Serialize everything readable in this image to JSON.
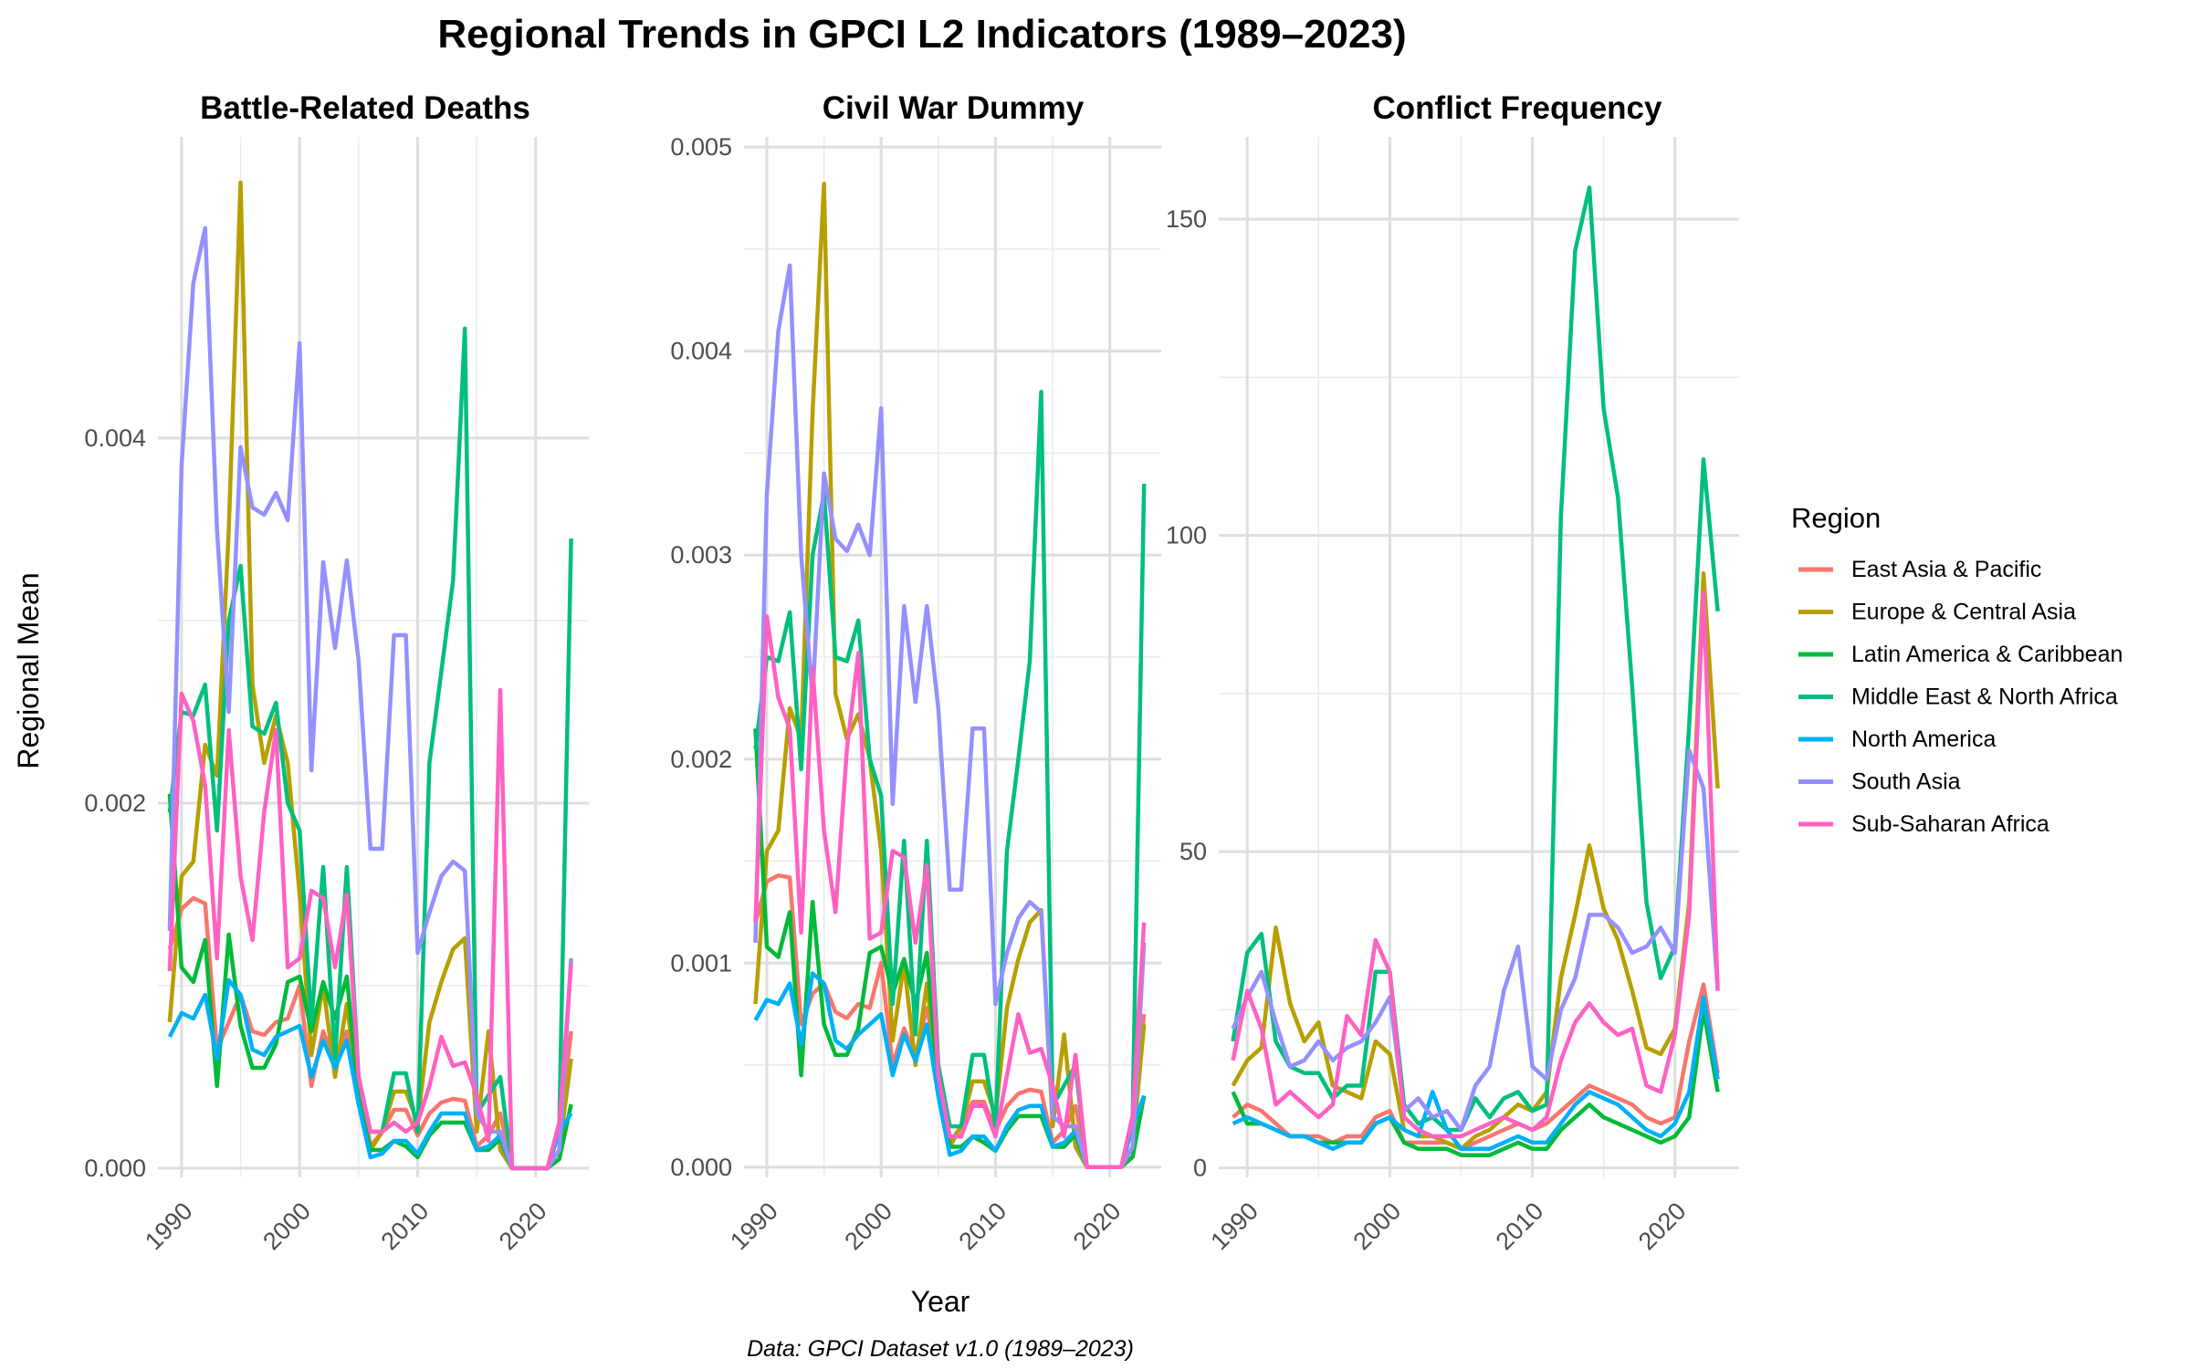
{
  "figure": {
    "title": "Regional Trends in GPCI L2 Indicators (1989–2023)",
    "caption": "Data: GPCI Dataset v1.0 (1989–2023)",
    "xlabel": "Year",
    "ylabel": "Regional Mean"
  },
  "legend": {
    "title": "Region",
    "placement": "right"
  },
  "chart_data": [
    {
      "type": "line",
      "title": "Battle-Related Deaths",
      "xlim": [
        1988,
        2024.5
      ],
      "ylim": [
        -5e-05,
        0.00565
      ],
      "xticks": [
        1990,
        2000,
        2010,
        2020
      ],
      "yticks": [
        0,
        0.002,
        0.004
      ],
      "ytick_labels": [
        "0.000",
        "0.002",
        "0.004"
      ],
      "x": [
        1989,
        1990,
        1991,
        1992,
        1993,
        1994,
        1995,
        1996,
        1997,
        1998,
        1999,
        2000,
        2001,
        2002,
        2003,
        2004,
        2005,
        2006,
        2007,
        2008,
        2009,
        2010,
        2011,
        2012,
        2013,
        2014,
        2015,
        2016,
        2017,
        2018,
        2019,
        2020,
        2021,
        2022,
        2023
      ],
      "series": [
        {
          "name": "East Asia & Pacific",
          "color": "#F8766D",
          "values": [
            0.0012,
            0.00142,
            0.00148,
            0.00145,
            0.00065,
            0.0008,
            0.00095,
            0.00075,
            0.00073,
            0.0008,
            0.00082,
            0.001,
            0.00045,
            0.00075,
            0.00058,
            0.00075,
            0.0005,
            0.00012,
            0.0002,
            0.00032,
            0.00032,
            0.00018,
            0.0003,
            0.00036,
            0.00038,
            0.00037,
            0.00012,
            0.00018,
            0.0003,
            0,
            0,
            0,
            0,
            0.0002,
            0.00075
          ]
        },
        {
          "name": "Europe & Central Asia",
          "color": "#B79F00",
          "values": [
            0.0008,
            0.0016,
            0.00168,
            0.00232,
            0.00215,
            0.0035,
            0.0054,
            0.00265,
            0.00222,
            0.00248,
            0.00222,
            0.0015,
            0.00062,
            0.001,
            0.0005,
            0.0009,
            0.0004,
            0.0001,
            0.0002,
            0.00042,
            0.00042,
            0.00025,
            0.0008,
            0.00102,
            0.0012,
            0.00126,
            0.0002,
            0.00075,
            0.0001,
            0,
            0,
            0,
            0,
            0.0001,
            0.0006
          ]
        },
        {
          "name": "Latin America & Caribbean",
          "color": "#00BA38",
          "values": [
            0.00205,
            0.0011,
            0.00102,
            0.00125,
            0.00045,
            0.00128,
            0.00078,
            0.00055,
            0.00055,
            0.00068,
            0.00102,
            0.00105,
            0.00075,
            0.00102,
            0.00082,
            0.00105,
            0.00038,
            0.0001,
            0.0001,
            0.00015,
            0.00012,
            6e-05,
            0.00018,
            0.00025,
            0.00025,
            0.00025,
            0.0001,
            0.0001,
            0.00016,
            0,
            0,
            0,
            0,
            5e-05,
            0.00035
          ]
        },
        {
          "name": "Middle East & North Africa",
          "color": "#00BF7D",
          "values": [
            0.00195,
            0.0025,
            0.00248,
            0.00265,
            0.00185,
            0.003,
            0.0033,
            0.00242,
            0.00238,
            0.00255,
            0.002,
            0.00185,
            0.0008,
            0.00165,
            0.0006,
            0.00165,
            0.0005,
            0.0002,
            0.0002,
            0.00052,
            0.00052,
            0.0002,
            0.00222,
            0.00272,
            0.00322,
            0.0046,
            0.0003,
            0.0004,
            0.0005,
            0,
            0,
            0,
            0,
            0.00025,
            0.00345
          ]
        },
        {
          "name": "North America",
          "color": "#00B0F6",
          "values": [
            0.00072,
            0.00085,
            0.00082,
            0.00095,
            0.0006,
            0.00103,
            0.00095,
            0.00065,
            0.00062,
            0.00072,
            0.00075,
            0.00078,
            0.0005,
            0.0007,
            0.00055,
            0.0007,
            0.00035,
            6e-05,
            8e-05,
            0.00015,
            0.00015,
            8e-05,
            0.0002,
            0.0003,
            0.0003,
            0.0003,
            0.0001,
            0.00012,
            0.00018,
            0,
            0,
            0,
            0,
            0.0002,
            0.0003
          ]
        },
        {
          "name": "South Asia",
          "color": "#9590FF",
          "values": [
            0.0013,
            0.00385,
            0.00485,
            0.00515,
            0.0035,
            0.0025,
            0.00395,
            0.00362,
            0.00358,
            0.0037,
            0.00355,
            0.00452,
            0.00218,
            0.00332,
            0.00285,
            0.00333,
            0.00278,
            0.00175,
            0.00175,
            0.00292,
            0.00292,
            0.00118,
            0.0014,
            0.0016,
            0.00168,
            0.00163,
            0.0003,
            0.0002,
            0.0002,
            0,
            0,
            0,
            0,
            0.0001,
            0.00115
          ]
        },
        {
          "name": "Sub-Saharan Africa",
          "color": "#FF61C3",
          "values": [
            0.00108,
            0.0026,
            0.00245,
            0.0021,
            0.00115,
            0.0024,
            0.0016,
            0.00125,
            0.00195,
            0.0024,
            0.0011,
            0.00115,
            0.00152,
            0.00148,
            0.0011,
            0.0015,
            0.0005,
            0.0002,
            0.0002,
            0.00025,
            0.0002,
            0.00025,
            0.00045,
            0.00072,
            0.00056,
            0.00058,
            0.0004,
            0.00015,
            0.00262,
            0,
            0,
            0,
            0,
            0.00025,
            0.00112
          ]
        }
      ]
    },
    {
      "type": "line",
      "title": "Civil War Dummy",
      "xlim": [
        1988,
        2024.5
      ],
      "ylim": [
        -5e-05,
        0.00505
      ],
      "xticks": [
        1990,
        2000,
        2010,
        2020
      ],
      "yticks": [
        0,
        0.001,
        0.002,
        0.003,
        0.004,
        0.005
      ],
      "ytick_labels": [
        "0.000",
        "0.001",
        "0.002",
        "0.003",
        "0.004",
        "0.005"
      ],
      "x": [
        1989,
        1990,
        1991,
        1992,
        1993,
        1994,
        1995,
        1996,
        1997,
        1998,
        1999,
        2000,
        2001,
        2002,
        2003,
        2004,
        2005,
        2006,
        2007,
        2008,
        2009,
        2010,
        2011,
        2012,
        2013,
        2014,
        2015,
        2016,
        2017,
        2018,
        2019,
        2020,
        2021,
        2022,
        2023
      ],
      "series": [
        {
          "name": "East Asia & Pacific",
          "color": "#F8766D",
          "values": [
            0.0012,
            0.0014,
            0.00143,
            0.00142,
            0.0007,
            0.00085,
            0.0009,
            0.00076,
            0.00073,
            0.0008,
            0.00078,
            0.001,
            0.0005,
            0.00068,
            0.00055,
            0.00078,
            0.0005,
            0.00012,
            0.0002,
            0.00032,
            0.00032,
            0.00018,
            0.0003,
            0.00036,
            0.00038,
            0.00037,
            0.00012,
            0.00018,
            0.0003,
            0,
            0,
            0,
            0,
            0.0002,
            0.00075
          ]
        },
        {
          "name": "Europe & Central Asia",
          "color": "#B79F00",
          "values": [
            0.0008,
            0.00155,
            0.00165,
            0.00225,
            0.0021,
            0.0037,
            0.00482,
            0.00232,
            0.0021,
            0.00222,
            0.002,
            0.00155,
            0.00062,
            0.001,
            0.0005,
            0.0009,
            0.0004,
            0.0001,
            0.0002,
            0.00042,
            0.00042,
            0.00025,
            0.00078,
            0.00102,
            0.0012,
            0.00126,
            0.0002,
            0.00065,
            0.0001,
            0,
            0,
            0,
            0,
            0.0001,
            0.0007
          ]
        },
        {
          "name": "Latin America & Caribbean",
          "color": "#00BA38",
          "values": [
            0.00215,
            0.00108,
            0.00103,
            0.00125,
            0.00045,
            0.0013,
            0.0007,
            0.00055,
            0.00055,
            0.00068,
            0.00105,
            0.00108,
            0.00085,
            0.00102,
            0.0008,
            0.00105,
            0.00038,
            0.0001,
            0.0001,
            0.00015,
            0.00012,
            8e-05,
            0.00018,
            0.00025,
            0.00025,
            0.00025,
            0.0001,
            0.0001,
            0.00016,
            0,
            0,
            0,
            0,
            5e-05,
            0.00035
          ]
        },
        {
          "name": "Middle East & North Africa",
          "color": "#00BF7D",
          "values": [
            0.00205,
            0.0025,
            0.00248,
            0.00272,
            0.00195,
            0.003,
            0.0033,
            0.0025,
            0.00248,
            0.00268,
            0.002,
            0.00182,
            0.0008,
            0.0016,
            0.00065,
            0.0016,
            0.0005,
            0.0002,
            0.0002,
            0.00055,
            0.00055,
            0.0002,
            0.00155,
            0.002,
            0.00248,
            0.0038,
            0.0003,
            0.0004,
            0.0005,
            0,
            0,
            0,
            0,
            0.00025,
            0.00335
          ]
        },
        {
          "name": "North America",
          "color": "#00B0F6",
          "values": [
            0.00072,
            0.00082,
            0.0008,
            0.0009,
            0.0006,
            0.00095,
            0.0009,
            0.00062,
            0.00058,
            0.00065,
            0.0007,
            0.00075,
            0.00045,
            0.00065,
            0.00052,
            0.0007,
            0.00035,
            6e-05,
            8e-05,
            0.00015,
            0.00015,
            8e-05,
            0.0002,
            0.00028,
            0.0003,
            0.0003,
            0.0001,
            0.00012,
            0.00018,
            0,
            0,
            0,
            0,
            0.0002,
            0.00035
          ]
        },
        {
          "name": "South Asia",
          "color": "#9590FF",
          "values": [
            0.0011,
            0.0033,
            0.0041,
            0.00442,
            0.003,
            0.0023,
            0.0034,
            0.00308,
            0.00302,
            0.00315,
            0.003,
            0.00372,
            0.00178,
            0.00275,
            0.00228,
            0.00275,
            0.00225,
            0.00136,
            0.00136,
            0.00215,
            0.00215,
            0.0008,
            0.00105,
            0.00122,
            0.0013,
            0.00125,
            0.00025,
            0.0002,
            0.0002,
            0,
            0,
            0,
            0,
            0.0001,
            0.0011
          ]
        },
        {
          "name": "Sub-Saharan Africa",
          "color": "#FF61C3",
          "values": [
            0.0012,
            0.0027,
            0.0023,
            0.00215,
            0.00115,
            0.00245,
            0.00165,
            0.00125,
            0.00205,
            0.00252,
            0.00112,
            0.00115,
            0.00155,
            0.00152,
            0.0011,
            0.00148,
            0.00045,
            0.00015,
            0.00015,
            0.0003,
            0.0003,
            0.00015,
            0.00045,
            0.00075,
            0.00056,
            0.00058,
            0.0004,
            0.00015,
            0.00055,
            0,
            0,
            0,
            0,
            0.00025,
            0.0012
          ]
        }
      ]
    },
    {
      "type": "line",
      "title": "Conflict Frequency",
      "xlim": [
        1988,
        2024.5
      ],
      "ylim": [
        -1.5,
        163
      ],
      "xticks": [
        1990,
        2000,
        2010,
        2020
      ],
      "yticks": [
        0,
        50,
        100,
        150
      ],
      "ytick_labels": [
        "0",
        "50",
        "100",
        "150"
      ],
      "x": [
        1989,
        1990,
        1991,
        1992,
        1993,
        1994,
        1995,
        1996,
        1997,
        1998,
        1999,
        2000,
        2001,
        2002,
        2003,
        2004,
        2005,
        2006,
        2007,
        2008,
        2009,
        2010,
        2011,
        2012,
        2013,
        2014,
        2015,
        2016,
        2017,
        2018,
        2019,
        2020,
        2021,
        2022,
        2023
      ],
      "series": [
        {
          "name": "East Asia & Pacific",
          "color": "#F8766D",
          "values": [
            8,
            10,
            9,
            7,
            5,
            5,
            5,
            4,
            5,
            5,
            8,
            9,
            4,
            4,
            4,
            4,
            3,
            4,
            5,
            6,
            7,
            6,
            7,
            9,
            11,
            13,
            12,
            11,
            10,
            8,
            7,
            8,
            20,
            29,
            15
          ]
        },
        {
          "name": "Europe & Central Asia",
          "color": "#B79F00",
          "values": [
            13,
            17,
            19,
            38,
            26,
            20,
            23,
            13,
            12,
            11,
            20,
            18,
            6,
            5,
            5,
            4,
            3,
            5,
            6,
            8,
            10,
            9,
            12,
            30,
            40,
            51,
            41,
            36,
            28,
            19,
            18,
            22,
            42,
            94,
            60
          ]
        },
        {
          "name": "Latin America & Caribbean",
          "color": "#00BA38",
          "values": [
            12,
            7,
            7,
            6,
            5,
            5,
            4,
            4,
            4,
            4,
            7,
            8,
            4,
            3,
            3,
            3,
            2,
            2,
            2,
            3,
            4,
            3,
            3,
            6,
            8,
            10,
            8,
            7,
            6,
            5,
            4,
            5,
            8,
            25,
            12
          ]
        },
        {
          "name": "Middle East & North Africa",
          "color": "#00BF7D",
          "values": [
            20,
            34,
            37,
            20,
            16,
            15,
            15,
            11,
            13,
            13,
            31,
            31,
            10,
            7,
            8,
            6,
            6,
            11,
            8,
            11,
            12,
            9,
            10,
            103,
            145,
            155,
            120,
            106,
            76,
            42,
            30,
            35,
            70,
            112,
            88
          ]
        },
        {
          "name": "North America",
          "color": "#00B0F6",
          "values": [
            7,
            8,
            7,
            6,
            5,
            5,
            4,
            3,
            4,
            4,
            7,
            8,
            6,
            5,
            12,
            6,
            3,
            3,
            3,
            4,
            5,
            4,
            4,
            7,
            10,
            12,
            11,
            10,
            8,
            6,
            5,
            7,
            12,
            27,
            14
          ]
        },
        {
          "name": "South Asia",
          "color": "#9590FF",
          "values": [
            22,
            27,
            31,
            23,
            16,
            17,
            20,
            17,
            19,
            20,
            23,
            27,
            9,
            11,
            8,
            9,
            6,
            13,
            16,
            28,
            35,
            16,
            14,
            25,
            30,
            40,
            40,
            38,
            34,
            35,
            38,
            34,
            66,
            60,
            28
          ]
        },
        {
          "name": "Sub-Saharan Africa",
          "color": "#FF61C3",
          "values": [
            17,
            28,
            22,
            10,
            12,
            10,
            8,
            10,
            24,
            21,
            36,
            31,
            8,
            6,
            5,
            5,
            5,
            6,
            7,
            8,
            7,
            6,
            8,
            17,
            23,
            26,
            23,
            21,
            22,
            13,
            12,
            21,
            40,
            91,
            28
          ]
        }
      ]
    }
  ]
}
